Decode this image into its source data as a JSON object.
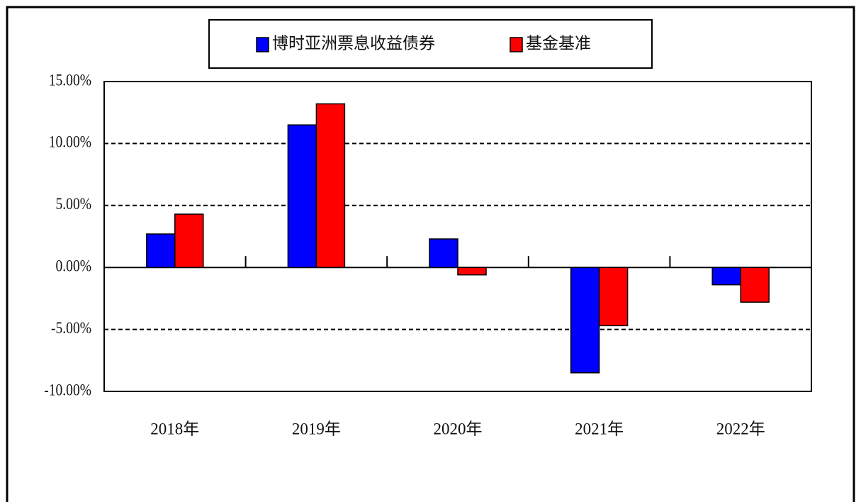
{
  "chart_data": {
    "type": "bar",
    "categories": [
      "2018年",
      "2019年",
      "2020年",
      "2021年",
      "2022年"
    ],
    "series": [
      {
        "name": "博时亚洲票息收益债券",
        "color": "#0000ff",
        "values": [
          2.7,
          11.5,
          2.3,
          -8.5,
          -1.4
        ]
      },
      {
        "name": "基金基准",
        "color": "#ff0000",
        "values": [
          4.3,
          13.2,
          -0.6,
          -4.7,
          -2.8
        ]
      }
    ],
    "ylim": [
      -10,
      15
    ],
    "yticks": [
      {
        "value": -10,
        "label": "-10.00%"
      },
      {
        "value": -5,
        "label": "-5.00%"
      },
      {
        "value": 0,
        "label": "0.00%"
      },
      {
        "value": 5,
        "label": "5.00%"
      },
      {
        "value": 10,
        "label": "10.00%"
      },
      {
        "value": 15,
        "label": "15.00%"
      }
    ],
    "grid": true,
    "legend": "top"
  }
}
